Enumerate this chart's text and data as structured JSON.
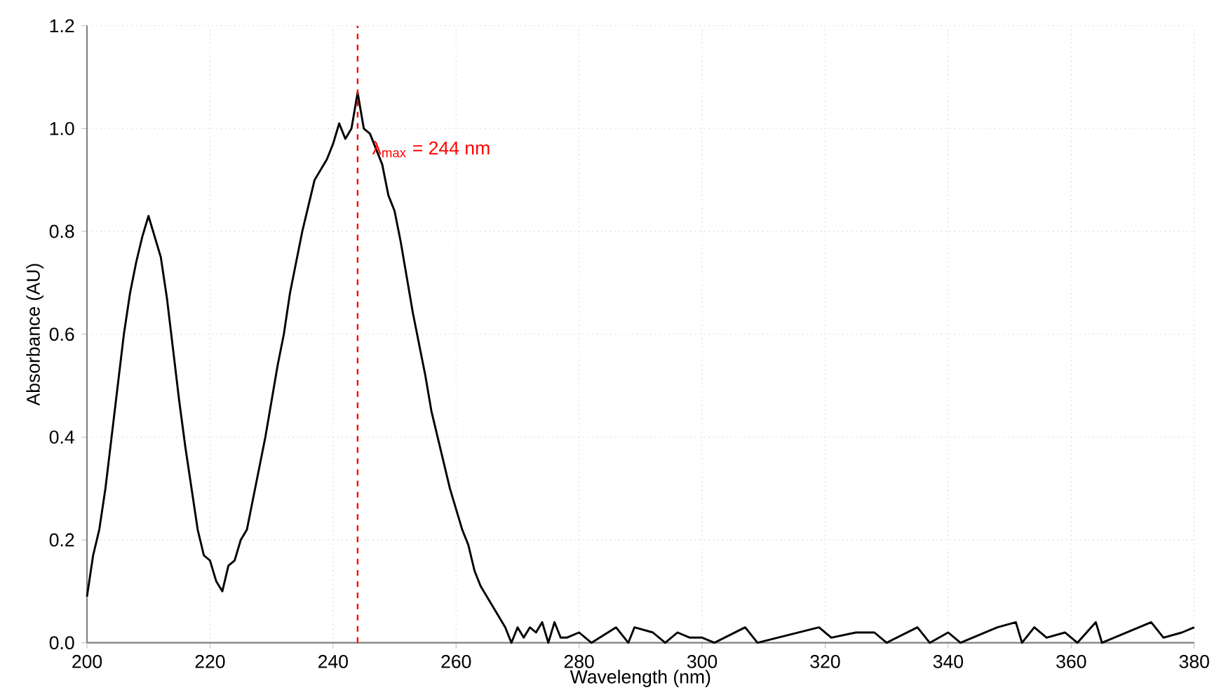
{
  "chart_data": {
    "type": "line",
    "xlabel": "Wavelength (nm)",
    "ylabel": "Absorbance (AU)",
    "xlim": [
      200,
      380
    ],
    "ylim": [
      0,
      1.2
    ],
    "xticks": [
      200,
      220,
      240,
      260,
      280,
      300,
      320,
      340,
      360,
      380
    ],
    "yticks": [
      {
        "value": 0,
        "label": "0.0"
      },
      {
        "value": 0.2,
        "label": "0.2"
      },
      {
        "value": 0.4,
        "label": "0.4"
      },
      {
        "value": 0.6,
        "label": "0.6"
      },
      {
        "value": 0.8,
        "label": "0.8"
      },
      {
        "value": 1.0,
        "label": "1.0"
      },
      {
        "value": 1.2,
        "label": "1.2"
      }
    ],
    "grid": true,
    "marker": "none",
    "line_style": "solid",
    "ref_lines": [
      {
        "axis": "x",
        "value": 244,
        "color": "#ff0000",
        "line_style": "dashed"
      }
    ],
    "annotations": [
      {
        "text": "λ$_{max}$ = 244 nm",
        "x": 246,
        "y": 0.96
      }
    ],
    "series": [
      {
        "color": "#000000",
        "x": [
          200,
          201,
          202,
          203,
          204,
          205,
          206,
          207,
          208,
          209,
          210,
          211,
          212,
          213,
          214,
          215,
          216,
          217,
          218,
          219,
          220,
          221,
          222,
          223,
          224,
          225,
          226,
          227,
          228,
          229,
          230,
          231,
          232,
          233,
          234,
          235,
          236,
          237,
          238,
          239,
          240,
          241,
          242,
          243,
          244,
          245,
          246,
          247,
          248,
          249,
          250,
          251,
          252,
          253,
          254,
          255,
          256,
          257,
          258,
          259,
          260,
          261,
          262,
          263,
          264,
          265,
          266,
          267,
          268,
          269,
          270,
          271,
          272,
          273,
          274,
          275,
          276,
          277,
          278,
          280,
          282,
          286,
          288,
          289,
          292,
          294,
          296,
          298,
          300,
          302,
          307,
          309,
          319,
          321,
          325,
          328,
          330,
          335,
          337,
          340,
          342,
          348,
          351,
          352,
          354,
          356,
          359,
          361,
          364,
          365,
          371,
          373,
          375,
          378,
          380
        ],
        "values": [
          0.09,
          0.17,
          0.22,
          0.3,
          0.4,
          0.5,
          0.6,
          0.68,
          0.74,
          0.79,
          0.83,
          0.79,
          0.75,
          0.67,
          0.57,
          0.47,
          0.38,
          0.3,
          0.22,
          0.17,
          0.16,
          0.12,
          0.1,
          0.15,
          0.16,
          0.2,
          0.22,
          0.28,
          0.34,
          0.4,
          0.47,
          0.54,
          0.6,
          0.68,
          0.74,
          0.8,
          0.85,
          0.9,
          0.92,
          0.94,
          0.97,
          1.01,
          0.98,
          1.0,
          1.07,
          1.0,
          0.99,
          0.96,
          0.93,
          0.87,
          0.84,
          0.78,
          0.71,
          0.64,
          0.58,
          0.52,
          0.45,
          0.4,
          0.35,
          0.3,
          0.26,
          0.22,
          0.19,
          0.14,
          0.11,
          0.09,
          0.07,
          0.05,
          0.03,
          0.0,
          0.03,
          0.01,
          0.03,
          0.02,
          0.04,
          0.0,
          0.04,
          0.01,
          0.01,
          0.02,
          0.0,
          0.03,
          0.0,
          0.03,
          0.02,
          0.0,
          0.02,
          0.01,
          0.01,
          0.0,
          0.03,
          0.0,
          0.03,
          0.01,
          0.02,
          0.02,
          0.0,
          0.03,
          0.0,
          0.02,
          0.0,
          0.03,
          0.04,
          0.0,
          0.03,
          0.01,
          0.02,
          0.0,
          0.04,
          0.0,
          0.03,
          0.04,
          0.01,
          0.02,
          0.03
        ]
      }
    ]
  }
}
